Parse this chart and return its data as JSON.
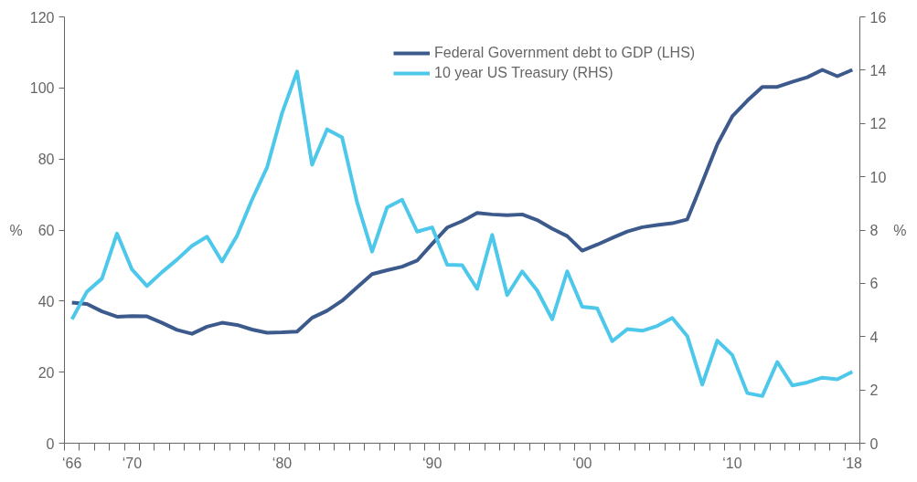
{
  "chart_data": {
    "type": "line",
    "categories": [
      "‘66",
      null,
      null,
      null,
      "‘70",
      null,
      null,
      null,
      null,
      null,
      null,
      null,
      null,
      null,
      "‘80",
      null,
      null,
      null,
      null,
      null,
      null,
      null,
      null,
      null,
      "‘90",
      null,
      null,
      null,
      null,
      null,
      null,
      null,
      null,
      null,
      "‘00",
      null,
      null,
      null,
      null,
      null,
      null,
      null,
      null,
      null,
      "‘10",
      null,
      null,
      null,
      null,
      null,
      null,
      null,
      "‘18"
    ],
    "series": [
      {
        "name": "Federal Government debt to GDP (LHS)",
        "color": "#3d5a8c",
        "values": [
          39.6,
          39.2,
          37.1,
          35.6,
          35.8,
          35.7,
          33.9,
          31.9,
          30.8,
          32.8,
          33.9,
          33.3,
          32.0,
          31.1,
          31.2,
          31.4,
          35.3,
          37.3,
          40.1,
          43.9,
          47.6,
          48.7,
          49.7,
          51.4,
          56.1,
          60.7,
          62.5,
          64.8,
          64.4,
          64.2,
          64.4,
          62.8,
          60.4,
          58.3,
          54.2,
          55.9,
          57.8,
          59.6,
          60.8,
          61.4,
          61.9,
          63.0,
          73.4,
          84.1,
          92.0,
          96.4,
          100.3,
          100.3,
          101.7,
          103.0,
          105.1,
          103.3,
          105.1
        ]
      },
      {
        "name": "10 year US Treasury (RHS)",
        "color": "#4dc8ea",
        "axis": "y2",
        "values": [
          4.65,
          5.69,
          6.18,
          7.87,
          6.52,
          5.9,
          6.42,
          6.89,
          7.41,
          7.75,
          6.82,
          7.79,
          9.14,
          10.35,
          12.39,
          13.95,
          10.45,
          11.78,
          11.48,
          9.04,
          7.19,
          8.85,
          9.14,
          7.94,
          8.1,
          6.7,
          6.68,
          5.79,
          7.82,
          5.56,
          6.45,
          5.73,
          4.65,
          6.45,
          5.12,
          5.06,
          3.83,
          4.28,
          4.22,
          4.4,
          4.7,
          4.02,
          2.2,
          3.85,
          3.31,
          1.88,
          1.77,
          3.05,
          2.17,
          2.28,
          2.46,
          2.4,
          2.68
        ]
      }
    ],
    "ylim": [
      0,
      120
    ],
    "yticks": [
      0,
      20,
      40,
      60,
      80,
      100,
      120
    ],
    "y2lim": [
      0,
      16
    ],
    "y2ticks": [
      0,
      2,
      4,
      6,
      8,
      10,
      12,
      14,
      16
    ],
    "ylabel": "%",
    "y2label": "%",
    "legend": "top",
    "grid": false,
    "line_style": "solid"
  }
}
